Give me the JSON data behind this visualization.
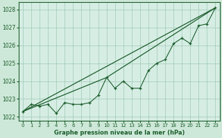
{
  "title": "Graphe pression niveau de la mer (hPa)",
  "bg_color": "#cde8d8",
  "plot_bg_color": "#d6ede4",
  "grid_color": "#9dc9b4",
  "line_color": "#1a5c2a",
  "xlim": [
    -0.5,
    23.5
  ],
  "ylim": [
    1021.8,
    1028.4
  ],
  "yticks": [
    1022,
    1023,
    1024,
    1025,
    1026,
    1027,
    1028
  ],
  "xticks": [
    0,
    1,
    2,
    3,
    4,
    5,
    6,
    7,
    8,
    9,
    10,
    11,
    12,
    13,
    14,
    15,
    16,
    17,
    18,
    19,
    20,
    21,
    22,
    23
  ],
  "hours": [
    0,
    1,
    2,
    3,
    4,
    5,
    6,
    7,
    8,
    9,
    10,
    11,
    12,
    13,
    14,
    15,
    16,
    17,
    18,
    19,
    20,
    21,
    22,
    23
  ],
  "pressure_main": [
    1022.3,
    1022.7,
    1022.6,
    1022.7,
    1022.2,
    1022.8,
    1022.7,
    1022.7,
    1022.8,
    1023.2,
    1024.2,
    1023.6,
    1024.0,
    1023.6,
    1023.6,
    1024.6,
    1025.0,
    1025.2,
    1026.1,
    1026.4,
    1026.1,
    1027.1,
    1027.2,
    1028.1
  ],
  "straight_line1_x": [
    0,
    23
  ],
  "straight_line1_y": [
    1022.3,
    1028.1
  ],
  "straight_line2_x": [
    0,
    10,
    23
  ],
  "straight_line2_y": [
    1022.3,
    1024.2,
    1028.1
  ]
}
